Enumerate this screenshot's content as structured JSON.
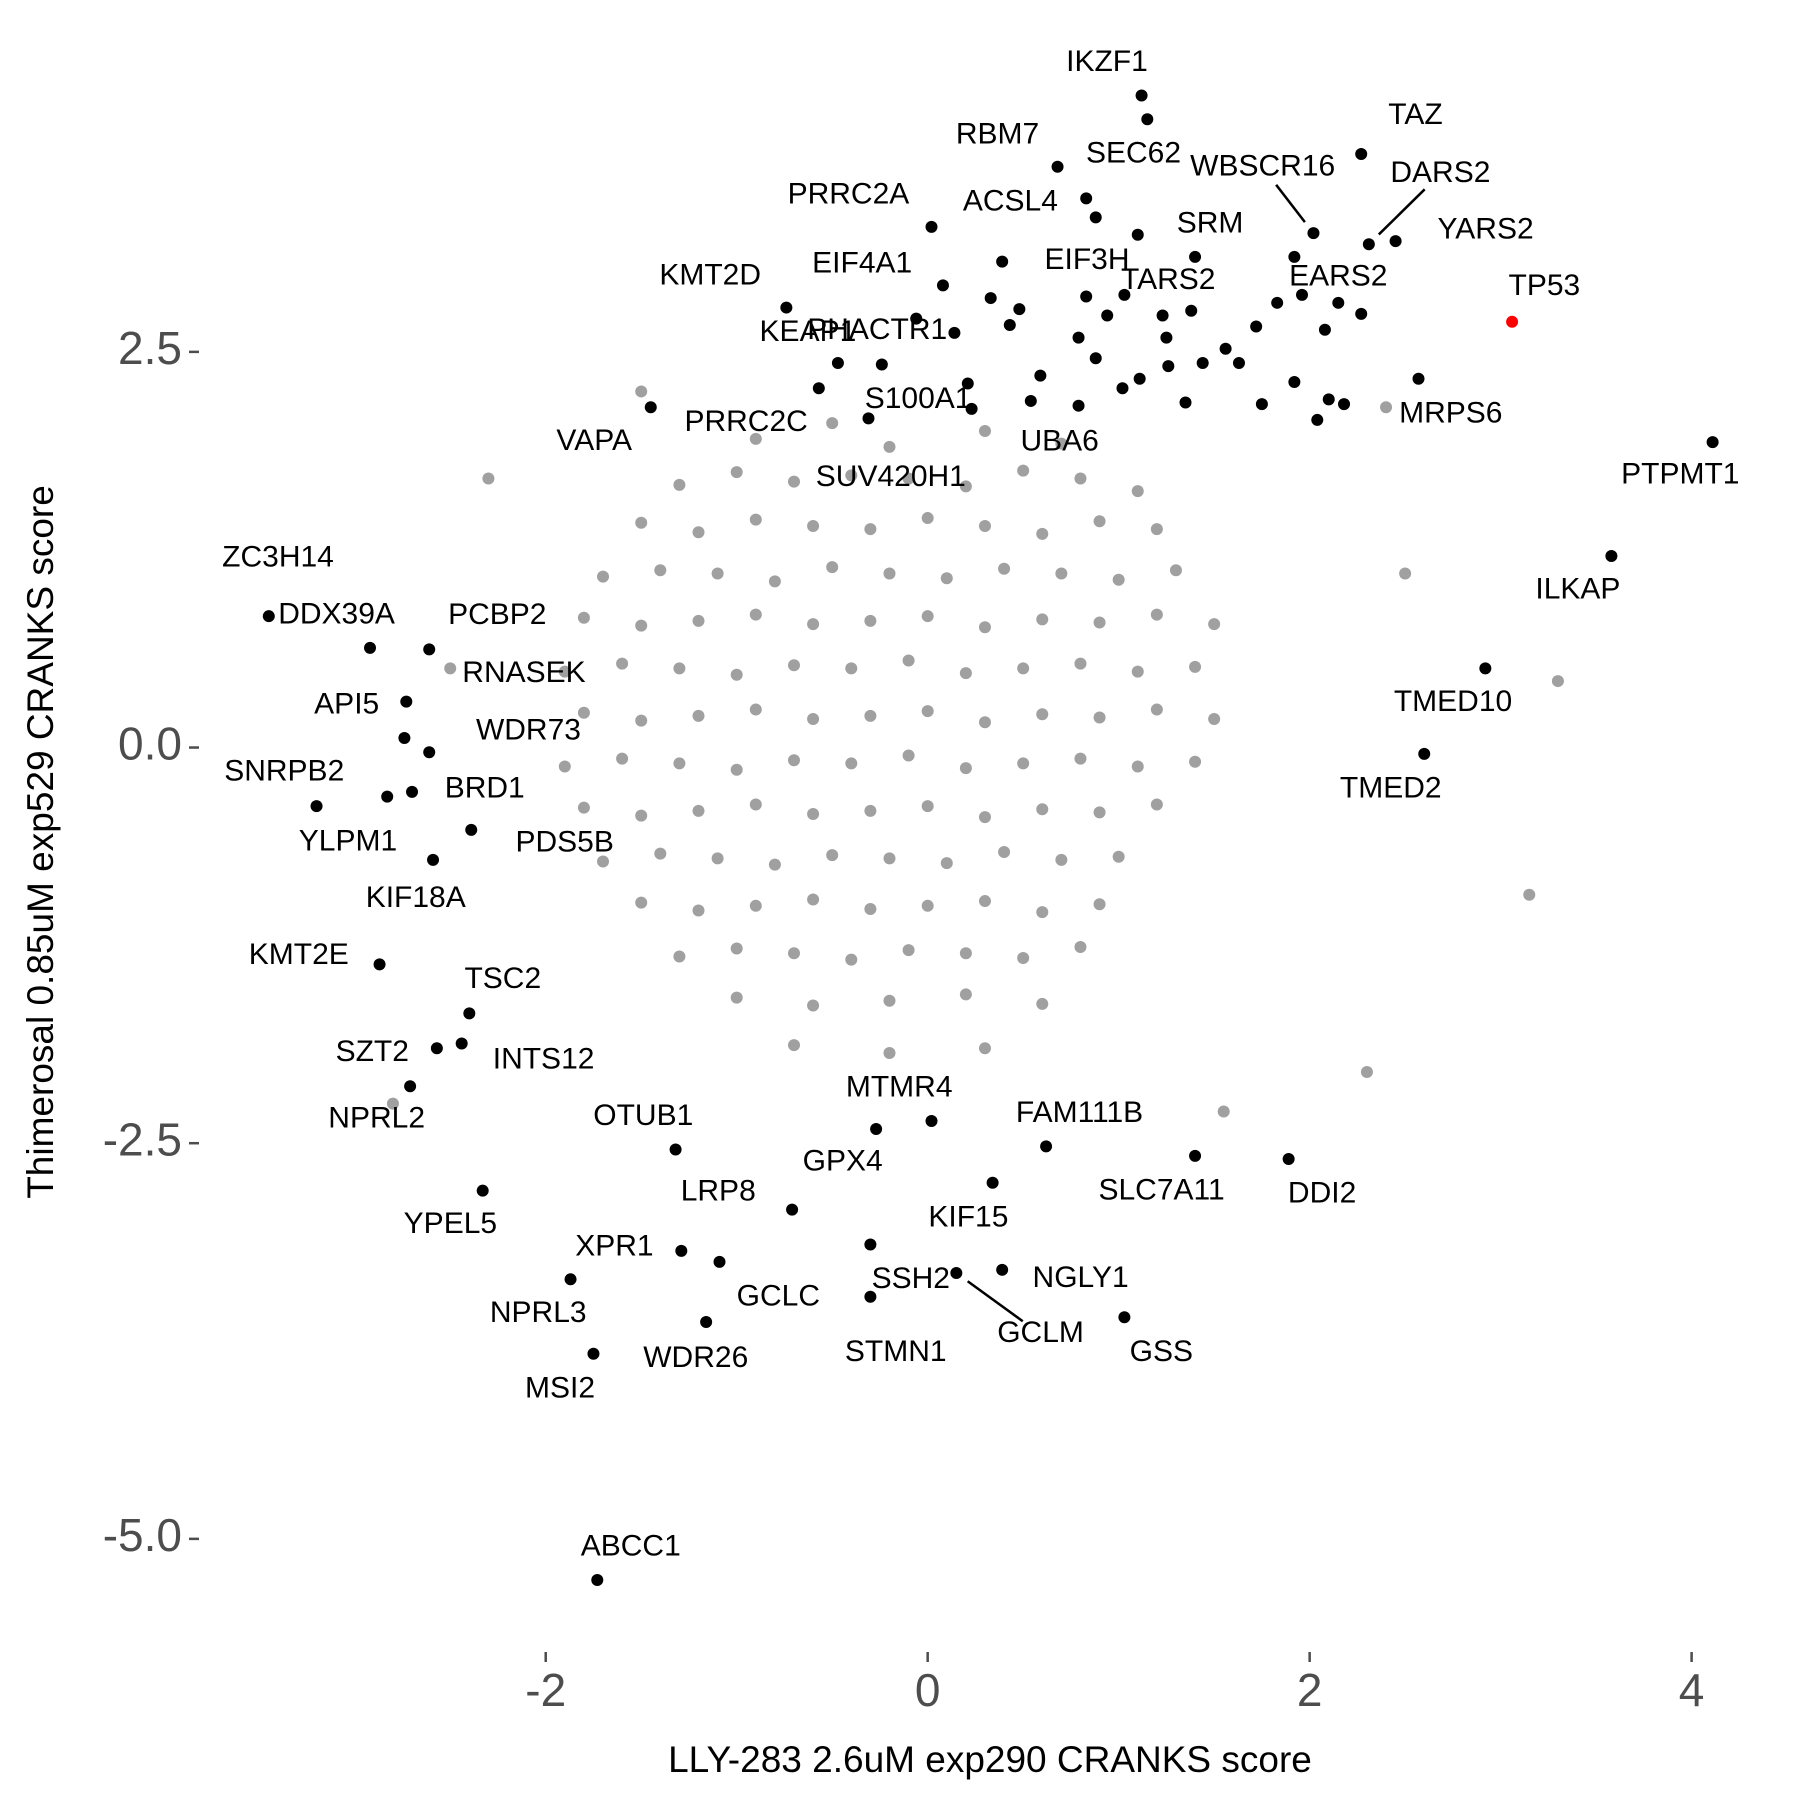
{
  "chart_data": {
    "type": "scatter",
    "xlabel": "LLY-283 2.6uM exp290 CRANKS score",
    "ylabel": "Thimerosal 0.85uM exp529 CRANKS score",
    "xlim": [
      -3.75,
      4.4
    ],
    "ylim": [
      -5.5,
      4.3
    ],
    "xticks": [
      -2,
      0,
      2,
      4
    ],
    "yticks": [
      2.5,
      {
        "value": 0,
        "label": "0.0"
      },
      -2.5,
      {
        "value": -5,
        "label": "-5.0"
      }
    ],
    "grid": false,
    "series": [
      {
        "color": "#a0a0a0",
        "x": [
          -0.9,
          -0.5,
          -0.2,
          0.3,
          0.7,
          -1.3,
          -1.0,
          -0.7,
          -0.4,
          -0.1,
          0.2,
          0.5,
          0.8,
          1.1,
          -1.5,
          -1.2,
          -0.9,
          -0.6,
          -0.3,
          0.0,
          0.3,
          0.6,
          0.9,
          1.2,
          -1.7,
          -1.4,
          -1.1,
          -0.8,
          -0.5,
          -0.2,
          0.1,
          0.4,
          0.7,
          1.0,
          1.3,
          -1.8,
          -1.5,
          -1.2,
          -0.9,
          -0.6,
          -0.3,
          0.0,
          0.3,
          0.6,
          0.9,
          1.2,
          1.5,
          -1.9,
          -1.6,
          -1.3,
          -1.0,
          -0.7,
          -0.4,
          -0.1,
          0.2,
          0.5,
          0.8,
          1.1,
          1.4,
          -1.8,
          -1.5,
          -1.2,
          -0.9,
          -0.6,
          -0.3,
          0.0,
          0.3,
          0.6,
          0.9,
          1.2,
          1.5,
          -1.9,
          -1.6,
          -1.3,
          -1.0,
          -0.7,
          -0.4,
          -0.1,
          0.2,
          0.5,
          0.8,
          1.1,
          1.4,
          -1.8,
          -1.5,
          -1.2,
          -0.9,
          -0.6,
          -0.3,
          0.0,
          0.3,
          0.6,
          0.9,
          1.2,
          -1.7,
          -1.4,
          -1.1,
          -0.8,
          -0.5,
          -0.2,
          0.1,
          0.4,
          0.7,
          1.0,
          -1.5,
          -1.2,
          -0.9,
          -0.6,
          -0.3,
          0.0,
          0.3,
          0.6,
          0.9,
          -1.3,
          -1.0,
          -0.7,
          -0.4,
          -0.1,
          0.2,
          0.5,
          0.8,
          -1.0,
          -0.6,
          -0.2,
          0.2,
          0.6,
          -0.7,
          -0.2,
          0.3,
          3.3,
          3.15,
          2.3,
          1.55,
          -2.8,
          -2.3,
          -1.5,
          2.4,
          2.5,
          -2.5
        ],
        "values": [
          1.95,
          2.05,
          1.9,
          2.0,
          1.92,
          1.66,
          1.74,
          1.68,
          1.72,
          1.7,
          1.65,
          1.75,
          1.7,
          1.62,
          1.42,
          1.36,
          1.44,
          1.4,
          1.38,
          1.45,
          1.4,
          1.35,
          1.43,
          1.38,
          1.08,
          1.12,
          1.1,
          1.05,
          1.14,
          1.1,
          1.07,
          1.13,
          1.1,
          1.06,
          1.12,
          0.82,
          0.77,
          0.8,
          0.84,
          0.78,
          0.8,
          0.83,
          0.76,
          0.81,
          0.79,
          0.84,
          0.78,
          0.48,
          0.53,
          0.5,
          0.46,
          0.52,
          0.5,
          0.55,
          0.47,
          0.5,
          0.53,
          0.48,
          0.51,
          0.22,
          0.17,
          0.2,
          0.24,
          0.18,
          0.2,
          0.23,
          0.16,
          0.21,
          0.19,
          0.24,
          0.18,
          -0.12,
          -0.07,
          -0.1,
          -0.14,
          -0.08,
          -0.1,
          -0.05,
          -0.13,
          -0.1,
          -0.07,
          -0.12,
          -0.09,
          -0.38,
          -0.43,
          -0.4,
          -0.36,
          -0.42,
          -0.4,
          -0.37,
          -0.44,
          -0.39,
          -0.41,
          -0.36,
          -0.72,
          -0.67,
          -0.7,
          -0.74,
          -0.68,
          -0.7,
          -0.73,
          -0.66,
          -0.71,
          -0.69,
          -0.98,
          -1.03,
          -1.0,
          -0.96,
          -1.02,
          -1.0,
          -0.97,
          -1.04,
          -0.99,
          -1.32,
          -1.27,
          -1.3,
          -1.34,
          -1.28,
          -1.3,
          -1.33,
          -1.26,
          -1.58,
          -1.63,
          -1.6,
          -1.56,
          -1.62,
          -1.88,
          -1.93,
          -1.9,
          0.42,
          -0.93,
          -2.05,
          -2.3,
          -2.25,
          1.7,
          2.25,
          2.15,
          1.1,
          0.5
        ]
      },
      {
        "color": "#000000",
        "x": [
          1.15,
          0.39,
          0.33,
          0.48,
          0.43,
          0.14,
          -0.06,
          0.21,
          0.59,
          0.79,
          0.83,
          0.94,
          0.79,
          0.88,
          1.02,
          1.11,
          1.23,
          1.25,
          1.38,
          1.26,
          1.44,
          1.35,
          1.56,
          1.63,
          1.72,
          1.83,
          1.92,
          1.96,
          2.08,
          2.27,
          2.1,
          1.92,
          1.75,
          2.04,
          2.18
        ],
        "values": [
          3.97,
          3.07,
          2.84,
          2.77,
          2.67,
          2.62,
          2.71,
          2.3,
          2.35,
          2.16,
          2.85,
          2.73,
          2.59,
          2.46,
          2.27,
          2.33,
          2.73,
          2.59,
          2.76,
          2.41,
          2.43,
          2.18,
          2.52,
          2.43,
          2.66,
          2.81,
          3.1,
          2.86,
          2.64,
          2.74,
          2.2,
          2.31,
          2.17,
          2.07,
          2.17
        ]
      },
      {
        "color": "#000000",
        "labels": [
          "IKZF1",
          "RBM7",
          "SEC62",
          "TAZ",
          "WBSCR16",
          "DARS2",
          "YARS2",
          "PRRC2A",
          "ACSL4",
          "SRM",
          "EIF3H",
          "EIF4A1",
          "KMT2D",
          "TARS2",
          "EARS2",
          "KEAP1",
          "PHACTR1",
          "PRRC2C",
          "S100A1",
          "VAPA",
          "UBA6",
          "SUV420H1",
          "MRPS6",
          "PTPMT1",
          "ILKAP",
          "ZC3H14",
          "DDX39A",
          "PCBP2",
          "RNASEK",
          "API5",
          "WDR73",
          "SNRPB2",
          "BRD1",
          "YLPM1",
          "PDS5B",
          "KIF18A",
          "TMED10",
          "TMED2",
          "KMT2E",
          "TSC2",
          "SZT2",
          "INTS12",
          "NPRL2",
          "OTUB1",
          "MTMR4",
          "GPX4",
          "LRP8",
          "FAM111B",
          "SLC7A11",
          "DDI2",
          "YPEL5",
          "KIF15",
          "XPR1",
          "GCLC",
          "NPRL3",
          "SSH2",
          "NGLY1",
          "GCLM",
          "STMN1",
          "GSS",
          "WDR26",
          "MSI2",
          "ABCC1"
        ],
        "x": [
          1.12,
          0.68,
          0.83,
          2.27,
          2.02,
          2.31,
          2.45,
          0.02,
          0.88,
          1.4,
          1.1,
          0.08,
          -0.74,
          1.03,
          2.15,
          -0.47,
          -0.24,
          -0.57,
          -0.31,
          -1.45,
          0.54,
          0.23,
          2.57,
          4.11,
          3.58,
          -3.45,
          -2.92,
          -2.61,
          -2.73,
          -2.74,
          -2.61,
          -3.2,
          -2.7,
          -2.83,
          -2.39,
          -2.59,
          2.92,
          2.6,
          -2.87,
          -2.4,
          -2.57,
          -2.44,
          -2.71,
          -1.32,
          -0.27,
          0.02,
          -0.71,
          0.62,
          1.4,
          1.89,
          -2.33,
          0.34,
          -1.29,
          -1.09,
          -1.87,
          -0.3,
          0.39,
          0.15,
          -0.3,
          1.03,
          -1.16,
          -1.75,
          -1.73
        ],
        "values": [
          4.12,
          3.67,
          3.47,
          3.75,
          3.25,
          3.18,
          3.2,
          3.29,
          3.35,
          3.1,
          3.24,
          2.92,
          2.78,
          2.86,
          2.81,
          2.43,
          2.42,
          2.27,
          2.08,
          2.15,
          2.19,
          2.14,
          2.33,
          1.93,
          1.21,
          0.83,
          0.63,
          0.62,
          0.29,
          0.06,
          -0.03,
          -0.37,
          -0.28,
          -0.31,
          -0.52,
          -0.71,
          0.5,
          -0.04,
          -1.37,
          -1.68,
          -1.9,
          -1.87,
          -2.14,
          -2.54,
          -2.41,
          -2.36,
          -2.92,
          -2.52,
          -2.58,
          -2.6,
          -2.8,
          -2.75,
          -3.18,
          -3.25,
          -3.36,
          -3.14,
          -3.3,
          -3.32,
          -3.47,
          -3.6,
          -3.63,
          -3.83,
          -5.26
        ]
      },
      {
        "color": "#ff0000",
        "labels": [
          "TP53"
        ],
        "x": [
          3.06
        ],
        "values": [
          2.69
        ]
      }
    ]
  }
}
